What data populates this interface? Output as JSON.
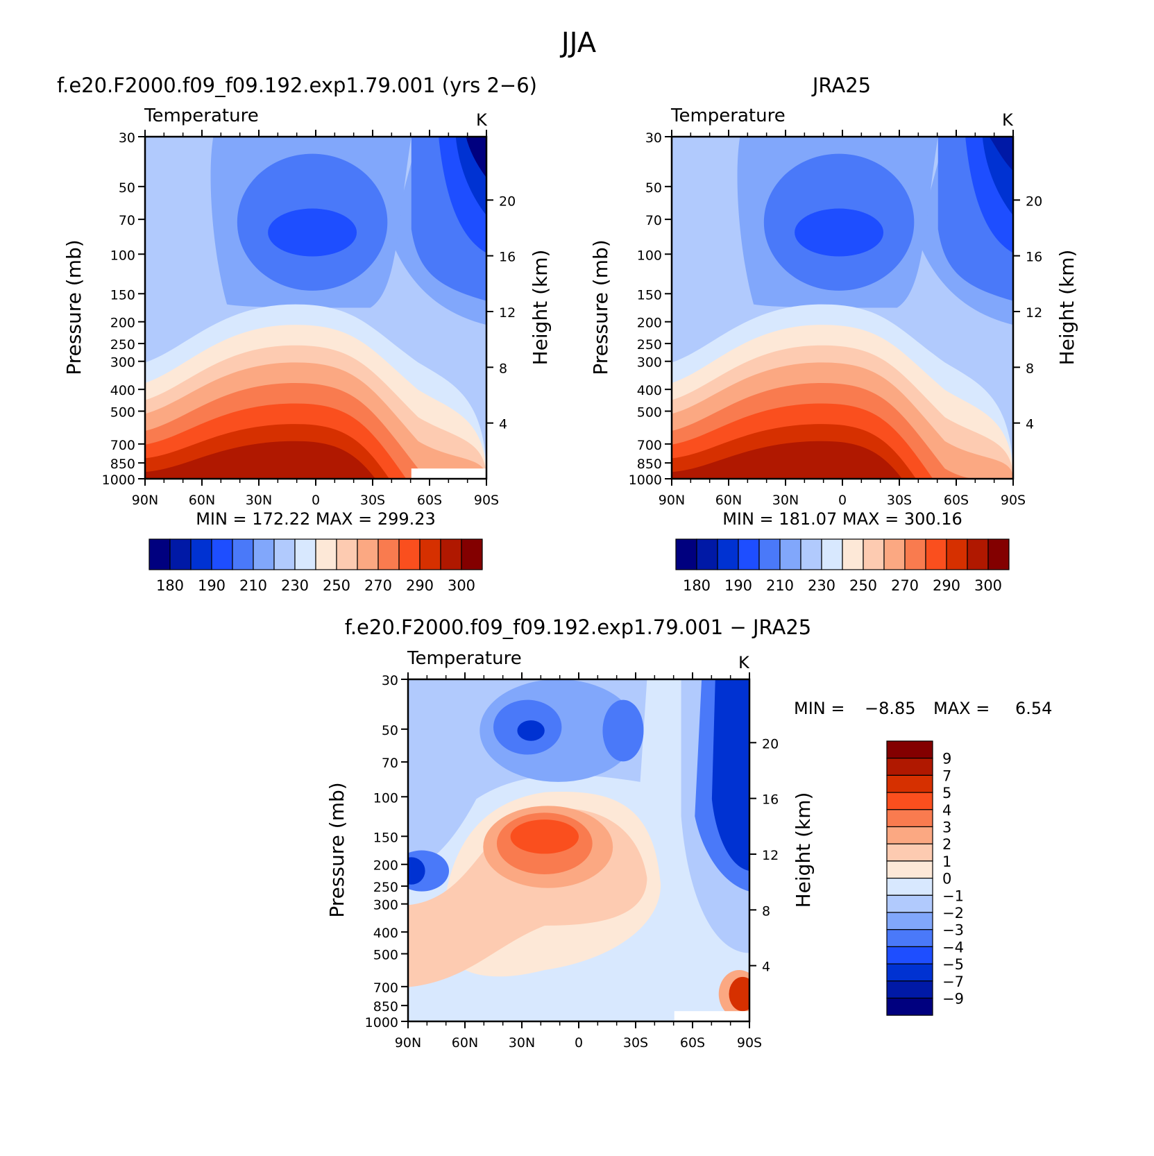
{
  "figure": {
    "title": "JJA"
  },
  "panels": {
    "model": {
      "title": "f.e20.F2000.f09_f09.192.exp1.79.001 (yrs 2−6)",
      "var_label": "Temperature",
      "unit": "K",
      "min_max": "MIN = 172.22 MAX = 299.23"
    },
    "obs": {
      "title": "JRA25",
      "var_label": "Temperature",
      "unit": "K",
      "min_max": "MIN = 181.07 MAX = 300.16"
    },
    "diff": {
      "title": "f.e20.F2000.f09_f09.192.exp1.79.001 − JRA25",
      "var_label": "Temperature",
      "unit": "K",
      "min_label": "MIN =",
      "min_value": "−8.85",
      "max_label": "MAX =",
      "max_value": "6.54"
    }
  },
  "axes": {
    "ylabel_left": "Pressure (mb)",
    "ylabel_right": "Height (km)",
    "pressure_ticks": [
      "30",
      "50",
      "70",
      "100",
      "150",
      "200",
      "250",
      "300",
      "400",
      "500",
      "700",
      "850",
      "1000"
    ],
    "height_ticks": [
      "20",
      "16",
      "12",
      "8",
      "4"
    ],
    "lat_ticks": [
      "90N",
      "60N",
      "30N",
      "0",
      "30S",
      "60S",
      "90S"
    ]
  },
  "colors": {
    "abs_palette": [
      "#00007f",
      "#0019a6",
      "#0032d2",
      "#1e4eff",
      "#4a79f9",
      "#81a7fb",
      "#b1cafd",
      "#d8e8fe",
      "#fde8d7",
      "#fdcbb1",
      "#fba882",
      "#f97b4f",
      "#fa4f1e",
      "#d63000",
      "#b01800",
      "#830000"
    ],
    "diff_palette": [
      "#00007f",
      "#0019a6",
      "#0032d2",
      "#1e4eff",
      "#4a79f9",
      "#81a7fb",
      "#b1cafd",
      "#d8e8fe",
      "#fde8d7",
      "#fdcbb1",
      "#fba882",
      "#f97b4f",
      "#fa4f1e",
      "#d63000",
      "#b01800",
      "#830000"
    ]
  },
  "colorbars": {
    "abs_labels": [
      "180",
      "190",
      "210",
      "230",
      "250",
      "270",
      "290",
      "300"
    ],
    "diff_labels": [
      "9",
      "7",
      "5",
      "4",
      "3",
      "2",
      "1",
      "0",
      "−1",
      "−2",
      "−3",
      "−4",
      "−5",
      "−7",
      "−9"
    ]
  },
  "chart_data": [
    {
      "type": "heatmap",
      "title": "f.e20.F2000.f09_f09.192.exp1.79.001 (yrs 2−6)",
      "variable": "Temperature",
      "unit": "K",
      "x": [
        "90N",
        "60N",
        "30N",
        "0",
        "30S",
        "60S",
        "90S"
      ],
      "y_pressure_mb": [
        30,
        50,
        70,
        100,
        150,
        200,
        250,
        300,
        400,
        500,
        700,
        850,
        1000
      ],
      "y_height_km": [
        20,
        16,
        12,
        8,
        4
      ],
      "contour_levels": [
        180,
        185,
        190,
        200,
        210,
        220,
        230,
        240,
        250,
        260,
        270,
        280,
        290,
        295,
        300
      ],
      "min": 172.22,
      "max": 299.23
    },
    {
      "type": "heatmap",
      "title": "JRA25",
      "variable": "Temperature",
      "unit": "K",
      "x": [
        "90N",
        "60N",
        "30N",
        "0",
        "30S",
        "60S",
        "90S"
      ],
      "y_pressure_mb": [
        30,
        50,
        70,
        100,
        150,
        200,
        250,
        300,
        400,
        500,
        700,
        850,
        1000
      ],
      "y_height_km": [
        20,
        16,
        12,
        8,
        4
      ],
      "contour_levels": [
        180,
        185,
        190,
        200,
        210,
        220,
        230,
        240,
        250,
        260,
        270,
        280,
        290,
        295,
        300
      ],
      "min": 181.07,
      "max": 300.16
    },
    {
      "type": "heatmap",
      "title": "f.e20.F2000.f09_f09.192.exp1.79.001 − JRA25",
      "variable": "Temperature",
      "unit": "K",
      "x": [
        "90N",
        "60N",
        "30N",
        "0",
        "30S",
        "60S",
        "90S"
      ],
      "y_pressure_mb": [
        30,
        50,
        70,
        100,
        150,
        200,
        250,
        300,
        400,
        500,
        700,
        850,
        1000
      ],
      "y_height_km": [
        20,
        16,
        12,
        8,
        4
      ],
      "contour_levels": [
        -9,
        -7,
        -5,
        -4,
        -3,
        -2,
        -1,
        0,
        1,
        2,
        3,
        4,
        5,
        7,
        9
      ],
      "min": -8.85,
      "max": 6.54
    }
  ]
}
